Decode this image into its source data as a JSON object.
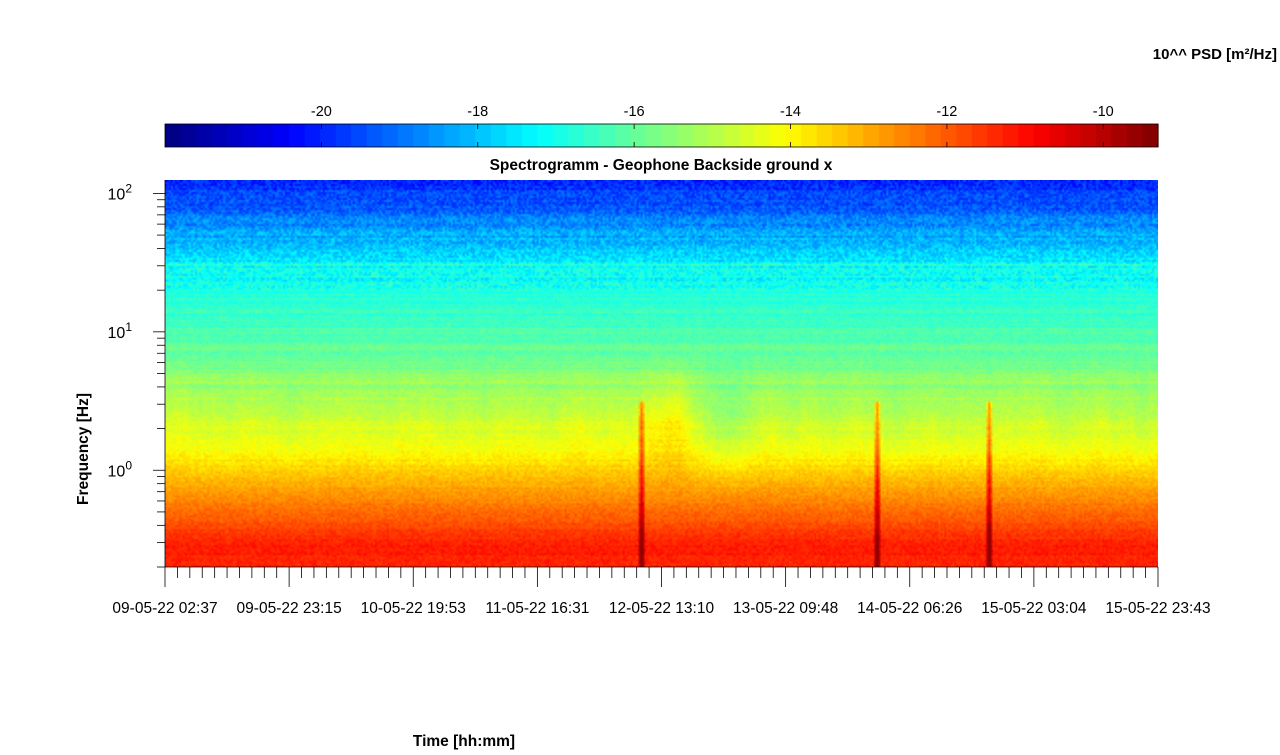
{
  "chart_data": {
    "type": "heatmap",
    "title": "Spectrogramm - Geophone Backside ground x",
    "xlabel": "Time [hh:mm]",
    "ylabel": "Frequency [Hz]",
    "y_scale": "log",
    "ylim": [
      0.2,
      125
    ],
    "y_ticks": [
      {
        "value": 1,
        "base": "10",
        "exp": "0"
      },
      {
        "value": 10,
        "base": "10",
        "exp": "1"
      },
      {
        "value": 100,
        "base": "10",
        "exp": "2"
      }
    ],
    "x_ticks": [
      "09-05-22 02:37",
      "09-05-22 23:15",
      "10-05-22 19:53",
      "11-05-22 16:31",
      "12-05-22 13:10",
      "13-05-22 09:48",
      "14-05-22 06:26",
      "15-05-22 03:04",
      "15-05-22 23:43"
    ],
    "colorbar": {
      "label": "10^^ PSD [m²/Hz]",
      "colormap": "jet",
      "range": [
        -22,
        -9.3
      ],
      "ticks": [
        "-20",
        "-18",
        "-16",
        "-14",
        "-12",
        "-10"
      ],
      "tick_values": [
        -20,
        -18,
        -16,
        -14,
        -12,
        -10
      ]
    },
    "psd_profile": [
      {
        "freq_hz": 0.3,
        "log_psd": -11.3
      },
      {
        "freq_hz": 0.7,
        "log_psd": -12.8
      },
      {
        "freq_hz": 1.5,
        "log_psd": -14.3
      },
      {
        "freq_hz": 5,
        "log_psd": -15.6
      },
      {
        "freq_hz": 10,
        "log_psd": -16.3
      },
      {
        "freq_hz": 30,
        "log_psd": -17.3
      },
      {
        "freq_hz": 100,
        "log_psd": -19.7
      }
    ],
    "transient_events": [
      {
        "time": "12-05-22 08:00"
      },
      {
        "time": "14-05-22 00:00"
      },
      {
        "time": "15-05-22 00:30"
      }
    ]
  }
}
